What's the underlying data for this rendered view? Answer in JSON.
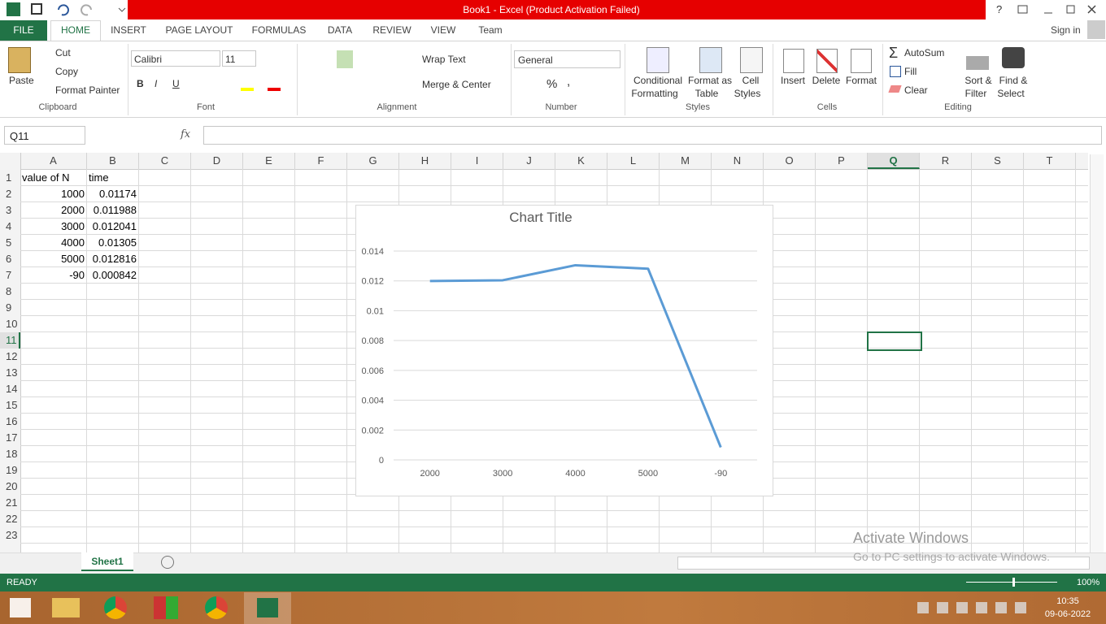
{
  "title_bar": {
    "title": "Book1 -  Excel (Product Activation Failed)",
    "help": "?"
  },
  "ribbon": {
    "tabs": [
      "FILE",
      "HOME",
      "INSERT",
      "PAGE LAYOUT",
      "FORMULAS",
      "DATA",
      "REVIEW",
      "VIEW",
      "Team"
    ],
    "sign_in": "Sign in",
    "clipboard": {
      "label": "Clipboard",
      "paste": "Paste",
      "cut": "Cut",
      "copy": "Copy",
      "format_painter": "Format Painter"
    },
    "font": {
      "label": "Font",
      "name": "Calibri",
      "size": "11",
      "bold": "B",
      "italic": "I",
      "underline": "U"
    },
    "alignment": {
      "label": "Alignment",
      "wrap": "Wrap Text",
      "merge": "Merge & Center"
    },
    "number": {
      "label": "Number",
      "format": "General",
      "percent": "%",
      "comma": ","
    },
    "styles": {
      "label": "Styles",
      "conditional": [
        "Conditional",
        "Formatting"
      ],
      "table": [
        "Format as",
        "Table"
      ],
      "cell_styles": [
        "Cell",
        "Styles"
      ]
    },
    "cells": {
      "label": "Cells",
      "insert": "Insert",
      "delete": "Delete",
      "format": "Format"
    },
    "editing": {
      "label": "Editing",
      "autosum": "AutoSum",
      "fill": "Fill",
      "clear": "Clear",
      "sort": [
        "Sort &",
        "Filter"
      ],
      "find": [
        "Find &",
        "Select"
      ]
    }
  },
  "formula_bar": {
    "name_box": "Q11",
    "fx": "fx"
  },
  "sheet": {
    "columns": [
      "A",
      "B",
      "C",
      "D",
      "E",
      "F",
      "G",
      "H",
      "I",
      "J",
      "K",
      "L",
      "M",
      "N",
      "O",
      "P",
      "Q",
      "R",
      "S",
      "T"
    ],
    "row_numbers": [
      1,
      2,
      3,
      4,
      5,
      6,
      7,
      8,
      9,
      10,
      11,
      12,
      13,
      14,
      15,
      16,
      17,
      18,
      19,
      20,
      21,
      22,
      23
    ],
    "cells": [
      [
        "value of N",
        "time"
      ],
      [
        1000,
        0.01174
      ],
      [
        2000,
        0.011988
      ],
      [
        3000,
        0.012041
      ],
      [
        4000,
        0.01305
      ],
      [
        5000,
        0.012816
      ],
      [
        -90,
        0.000842
      ]
    ]
  },
  "chart_data": {
    "type": "line",
    "title": "Chart Title",
    "categories": [
      "2000",
      "3000",
      "4000",
      "5000",
      "-90"
    ],
    "values": [
      0.011988,
      0.012041,
      0.01305,
      0.012816,
      0.000842
    ],
    "color": "#5b9bd5",
    "ylim": [
      0,
      0.014
    ],
    "yticks": [
      0,
      0.002,
      0.004,
      0.006,
      0.008,
      0.01,
      0.012,
      0.014
    ],
    "grid": true
  },
  "sheet_tabs": [
    "Sheet1"
  ],
  "status": {
    "mode": "READY",
    "zoom": "100%"
  },
  "watermark": {
    "line1": "Activate Windows",
    "line2": "Go to PC settings to activate Windows."
  },
  "taskbar": {
    "time": "10:35",
    "date": "09-06-2022"
  }
}
